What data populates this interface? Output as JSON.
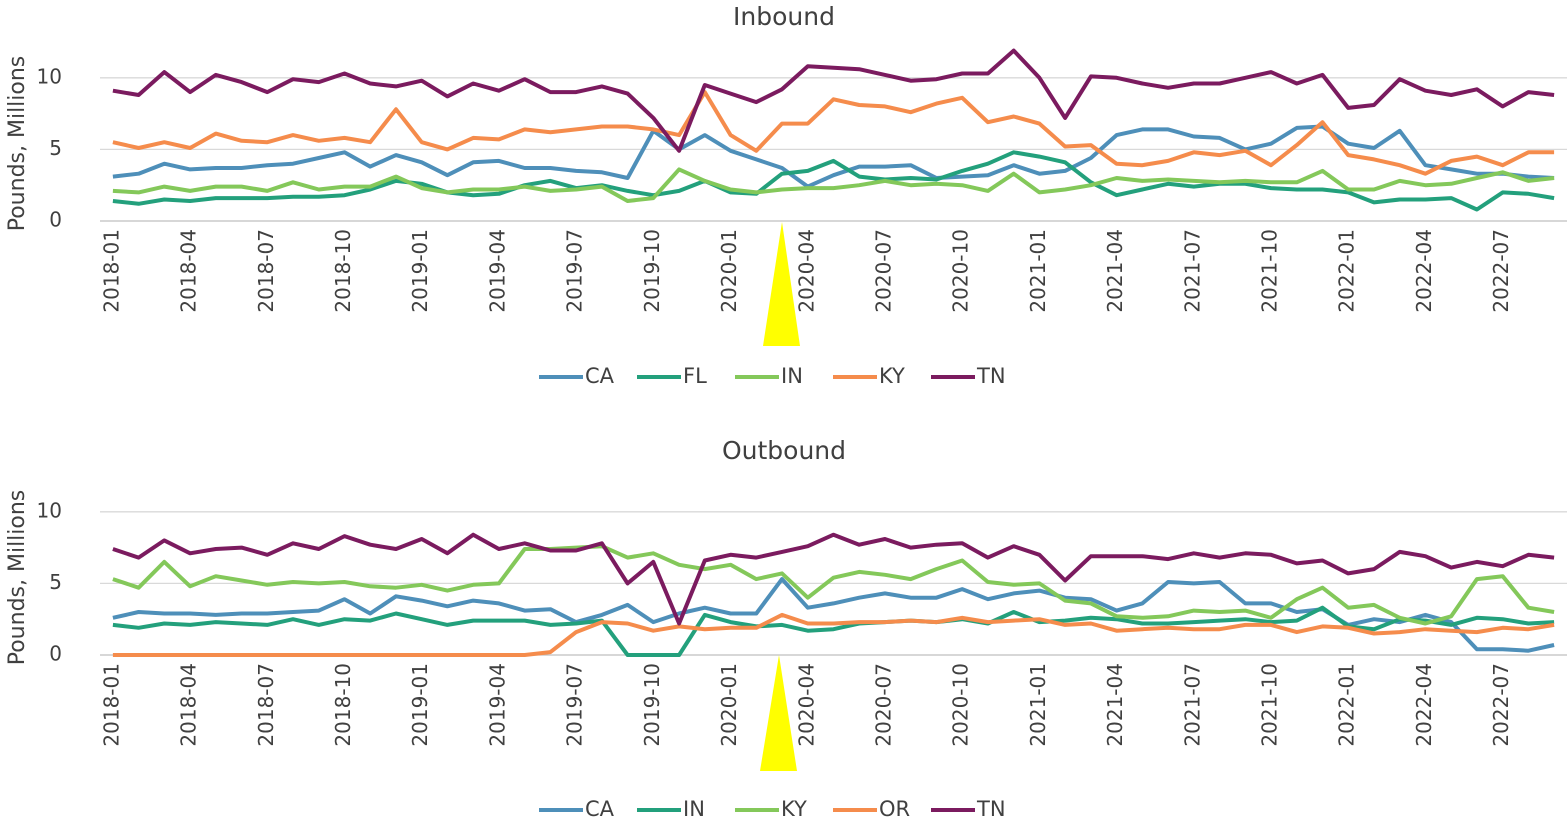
{
  "chart_data": [
    {
      "type": "line",
      "title": "Inbound",
      "y_label": "Pounds, Millions",
      "categories": [
        "2018-01",
        null,
        null,
        "2018-04",
        null,
        null,
        "2018-07",
        null,
        null,
        "2018-10",
        null,
        null,
        "2019-01",
        null,
        null,
        "2019-04",
        null,
        null,
        "2019-07",
        null,
        null,
        "2019-10",
        null,
        null,
        "2020-01",
        null,
        null,
        "2020-04",
        null,
        null,
        "2020-07",
        null,
        null,
        "2020-10",
        null,
        null,
        "2021-01",
        null,
        null,
        "2021-04",
        null,
        null,
        "2021-07",
        null,
        null,
        "2021-10",
        null,
        null,
        "2022-01",
        null,
        null,
        "2022-04",
        null,
        null,
        "2022-07",
        null,
        null
      ],
      "ylim": [
        0,
        12.5
      ],
      "yticks": [
        0,
        5,
        10
      ],
      "grid": true,
      "legend": "bottom",
      "series": [
        {
          "name": "CA",
          "color": "#4e8fb9",
          "values": [
            3.1,
            3.3,
            4.0,
            3.6,
            3.7,
            3.7,
            3.9,
            4.0,
            4.4,
            4.8,
            3.8,
            4.6,
            4.1,
            3.2,
            4.1,
            4.2,
            3.7,
            3.7,
            3.5,
            3.4,
            3.0,
            6.3,
            5.0,
            6.0,
            4.9,
            4.3,
            3.7,
            2.4,
            3.2,
            3.8,
            3.8,
            3.9,
            3.0,
            3.1,
            3.2,
            3.9,
            3.3,
            3.5,
            4.4,
            6.0,
            6.4,
            6.4,
            5.9,
            5.8,
            5.0,
            5.4,
            6.5,
            6.6,
            5.4,
            5.1,
            6.3,
            3.9,
            3.6,
            3.3,
            3.3,
            3.1,
            3.0
          ]
        },
        {
          "name": "FL",
          "color": "#23a07c",
          "values": [
            1.4,
            1.2,
            1.5,
            1.4,
            1.6,
            1.6,
            1.6,
            1.7,
            1.7,
            1.8,
            2.2,
            2.8,
            2.6,
            2.0,
            1.8,
            1.9,
            2.5,
            2.8,
            2.3,
            2.5,
            2.1,
            1.8,
            2.1,
            2.8,
            2.0,
            1.9,
            3.3,
            3.5,
            4.2,
            3.1,
            2.9,
            3.0,
            2.9,
            3.5,
            4.0,
            4.8,
            4.5,
            4.1,
            2.7,
            1.8,
            2.2,
            2.6,
            2.4,
            2.6,
            2.6,
            2.3,
            2.2,
            2.2,
            2.0,
            1.3,
            1.5,
            1.5,
            1.6,
            0.8,
            2.0,
            1.9,
            1.6
          ]
        },
        {
          "name": "IN",
          "color": "#84c85a",
          "values": [
            2.1,
            2.0,
            2.4,
            2.1,
            2.4,
            2.4,
            2.1,
            2.7,
            2.2,
            2.4,
            2.4,
            3.1,
            2.3,
            2.0,
            2.2,
            2.2,
            2.4,
            2.1,
            2.2,
            2.4,
            1.4,
            1.6,
            3.6,
            2.8,
            2.2,
            2.0,
            2.2,
            2.3,
            2.3,
            2.5,
            2.8,
            2.5,
            2.6,
            2.5,
            2.1,
            3.3,
            2.0,
            2.2,
            2.5,
            3.0,
            2.8,
            2.9,
            2.8,
            2.7,
            2.8,
            2.7,
            2.7,
            3.5,
            2.2,
            2.2,
            2.8,
            2.5,
            2.6,
            3.0,
            3.4,
            2.8,
            3.0
          ]
        },
        {
          "name": "KY",
          "color": "#f58c4c",
          "values": [
            5.5,
            5.1,
            5.5,
            5.1,
            6.1,
            5.6,
            5.5,
            6.0,
            5.6,
            5.8,
            5.5,
            7.8,
            5.5,
            5.0,
            5.8,
            5.7,
            6.4,
            6.2,
            6.4,
            6.6,
            6.6,
            6.4,
            6.0,
            9.0,
            6.0,
            4.9,
            6.8,
            6.8,
            8.5,
            8.1,
            8.0,
            7.6,
            8.2,
            8.6,
            6.9,
            7.3,
            6.8,
            5.2,
            5.3,
            4.0,
            3.9,
            4.2,
            4.8,
            4.6,
            4.9,
            3.9,
            5.3,
            6.9,
            4.6,
            4.3,
            3.9,
            3.3,
            4.2,
            4.5,
            3.9,
            4.8,
            4.8
          ]
        },
        {
          "name": "TN",
          "color": "#7b1b5f",
          "values": [
            9.1,
            8.8,
            10.4,
            9.0,
            10.2,
            9.7,
            9.0,
            9.9,
            9.7,
            10.3,
            9.6,
            9.4,
            9.8,
            8.7,
            9.6,
            9.1,
            9.9,
            9.0,
            9.0,
            9.4,
            8.9,
            7.2,
            4.9,
            9.5,
            8.9,
            8.3,
            9.2,
            10.8,
            10.7,
            10.6,
            10.2,
            9.8,
            9.9,
            10.3,
            10.3,
            11.9,
            10.0,
            7.2,
            10.1,
            10.0,
            9.6,
            9.3,
            9.6,
            9.6,
            10.0,
            10.4,
            9.6,
            10.2,
            7.9,
            8.1,
            9.9,
            9.1,
            8.8,
            9.2,
            8.0,
            9.0,
            8.8
          ]
        }
      ]
    },
    {
      "type": "line",
      "title": "Outbound",
      "y_label": "Pounds, Millions",
      "categories": [
        "2018-01",
        null,
        null,
        "2018-04",
        null,
        null,
        "2018-07",
        null,
        null,
        "2018-10",
        null,
        null,
        "2019-01",
        null,
        null,
        "2019-04",
        null,
        null,
        "2019-07",
        null,
        null,
        "2019-10",
        null,
        null,
        "2020-01",
        null,
        null,
        "2020-04",
        null,
        null,
        "2020-07",
        null,
        null,
        "2020-10",
        null,
        null,
        "2021-01",
        null,
        null,
        "2021-04",
        null,
        null,
        "2021-07",
        null,
        null,
        "2021-10",
        null,
        null,
        "2022-01",
        null,
        null,
        "2022-04",
        null,
        null,
        "2022-07",
        null,
        null
      ],
      "ylim": [
        0,
        12.5
      ],
      "yticks": [
        0,
        5,
        10
      ],
      "grid": true,
      "legend": "bottom",
      "series": [
        {
          "name": "CA",
          "color": "#4e8fb9",
          "values": [
            2.6,
            3.0,
            2.9,
            2.9,
            2.8,
            2.9,
            2.9,
            3.0,
            3.1,
            3.9,
            2.9,
            4.1,
            3.8,
            3.4,
            3.8,
            3.6,
            3.1,
            3.2,
            2.3,
            2.8,
            3.5,
            2.3,
            2.9,
            3.3,
            2.9,
            2.9,
            5.3,
            3.3,
            3.6,
            4.0,
            4.3,
            4.0,
            4.0,
            4.6,
            3.9,
            4.3,
            4.5,
            4.0,
            3.9,
            3.1,
            3.6,
            5.1,
            5.0,
            5.1,
            3.6,
            3.6,
            3.0,
            3.2,
            2.1,
            2.5,
            2.3,
            2.8,
            2.3,
            0.4,
            0.4,
            0.3,
            0.7
          ]
        },
        {
          "name": "IN",
          "color": "#23a07c",
          "values": [
            2.1,
            1.9,
            2.2,
            2.1,
            2.3,
            2.2,
            2.1,
            2.5,
            2.1,
            2.5,
            2.4,
            2.9,
            2.5,
            2.1,
            2.4,
            2.4,
            2.4,
            2.1,
            2.2,
            2.4,
            0,
            0,
            0,
            2.8,
            2.3,
            2.0,
            2.1,
            1.7,
            1.8,
            2.2,
            2.3,
            2.4,
            2.3,
            2.5,
            2.2,
            3.0,
            2.3,
            2.4,
            2.6,
            2.5,
            2.2,
            2.2,
            2.3,
            2.4,
            2.5,
            2.3,
            2.4,
            3.3,
            2.0,
            1.8,
            2.5,
            2.4,
            2.1,
            2.6,
            2.5,
            2.2,
            2.3
          ]
        },
        {
          "name": "KY",
          "color": "#84c85a",
          "values": [
            5.3,
            4.7,
            6.5,
            4.8,
            5.5,
            5.2,
            4.9,
            5.1,
            5.0,
            5.1,
            4.8,
            4.7,
            4.9,
            4.5,
            4.9,
            5.0,
            7.4,
            7.4,
            7.5,
            7.6,
            6.8,
            7.1,
            6.3,
            6.0,
            6.3,
            5.3,
            5.7,
            4.0,
            5.4,
            5.8,
            5.6,
            5.3,
            6.0,
            6.6,
            5.1,
            4.9,
            5.0,
            3.8,
            3.6,
            2.7,
            2.6,
            2.7,
            3.1,
            3.0,
            3.1,
            2.6,
            3.9,
            4.7,
            3.3,
            3.5,
            2.6,
            2.2,
            2.7,
            5.3,
            5.5,
            3.3,
            3.0
          ]
        },
        {
          "name": "OR",
          "color": "#f58c4c",
          "values": [
            0,
            0,
            0,
            0,
            0,
            0,
            0,
            0,
            0,
            0,
            0,
            0,
            0,
            0,
            0,
            0,
            0,
            0.2,
            1.6,
            2.3,
            2.2,
            1.7,
            2.0,
            1.8,
            1.9,
            1.9,
            2.8,
            2.2,
            2.2,
            2.3,
            2.3,
            2.4,
            2.3,
            2.6,
            2.3,
            2.4,
            2.5,
            2.1,
            2.2,
            1.7,
            1.8,
            1.9,
            1.8,
            1.8,
            2.1,
            2.1,
            1.6,
            2.0,
            1.9,
            1.5,
            1.6,
            1.8,
            1.7,
            1.6,
            1.9,
            1.8,
            2.1
          ]
        },
        {
          "name": "TN",
          "color": "#7b1b5f",
          "values": [
            7.4,
            6.8,
            8.0,
            7.1,
            7.4,
            7.5,
            7.0,
            7.8,
            7.4,
            8.3,
            7.7,
            7.4,
            8.1,
            7.1,
            8.4,
            7.4,
            7.8,
            7.3,
            7.3,
            7.8,
            5.0,
            6.5,
            2.2,
            6.6,
            7.0,
            6.8,
            7.2,
            7.6,
            8.4,
            7.7,
            8.1,
            7.5,
            7.7,
            7.8,
            6.8,
            7.6,
            7.0,
            5.2,
            6.9,
            6.9,
            6.9,
            6.7,
            7.1,
            6.8,
            7.1,
            7.0,
            6.4,
            6.6,
            5.7,
            6.0,
            7.2,
            6.9,
            6.1,
            6.5,
            6.2,
            7.0,
            6.8
          ]
        }
      ]
    }
  ]
}
